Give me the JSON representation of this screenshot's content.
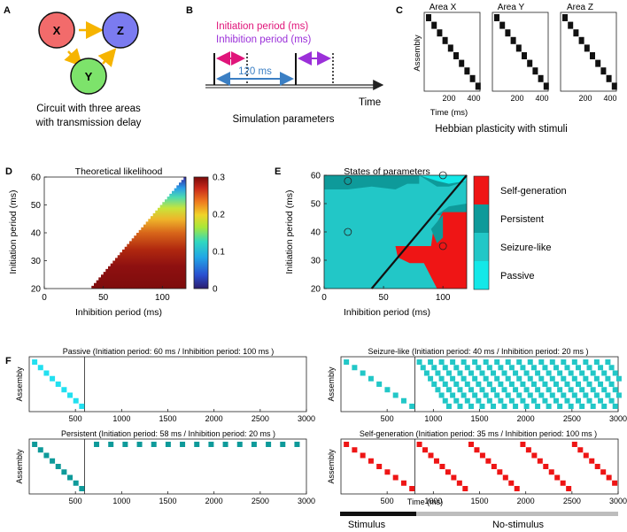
{
  "panel_letters": [
    "A",
    "B",
    "C",
    "D",
    "E",
    "F"
  ],
  "panel_a": {
    "nodes": [
      "X",
      "Z",
      "Y"
    ],
    "caption_line1": "Circuit with three areas",
    "caption_line2": "with transmission delay",
    "colors": {
      "X": "#f26b6b",
      "Z": "#7b7bf0",
      "Y": "#7de36b",
      "arrow": "#f6b400"
    }
  },
  "panel_b": {
    "initiation_label": "Initiation period (ms)",
    "inhibition_label": "Inhibition period (ms)",
    "span_label": "120 ms",
    "time_label": "Time",
    "caption": "Simulation parameters",
    "colors": {
      "initiation": "#e0157a",
      "inhibition": "#9b30d9",
      "span": "#3b7fc4"
    }
  },
  "panel_c": {
    "titles": [
      "Area X",
      "Area Y",
      "Area Z"
    ],
    "ylabel": "Assembly",
    "xlabel": "Time (ms)",
    "xticks": [
      "200",
      "400"
    ],
    "caption": "Hebbian plasticity with stimuli"
  },
  "chart_data": [
    {
      "type": "heatmap",
      "title": "Theoretical likelihood",
      "xlabel": "Inhibition period (ms)",
      "ylabel": "Initiation period (ms)",
      "xlim": [
        0,
        120
      ],
      "ylim": [
        20,
        60
      ],
      "xticks": [
        "0",
        "50",
        "100"
      ],
      "yticks": [
        "20",
        "30",
        "40",
        "50",
        "60"
      ],
      "colorbar_ticks": [
        "0",
        "0.1",
        "0.2",
        "0.3"
      ],
      "colorbar_range": [
        0,
        0.3
      ],
      "notes": "Defined only where inhibition period < 2 x (initiation period - 20); value highest near initiation 25-35 ms."
    },
    {
      "type": "heatmap",
      "title": "States of parameters",
      "xlabel": "Inhibition period (ms)",
      "ylabel": "Initiation period (ms)",
      "xlim": [
        0,
        120
      ],
      "ylim": [
        20,
        60
      ],
      "xticks": [
        "0",
        "50",
        "100"
      ],
      "yticks": [
        "20",
        "30",
        "40",
        "50",
        "60"
      ],
      "legend": [
        "Self-generation",
        "Persistent",
        "Seizure-like",
        "Passive"
      ],
      "legend_colors": [
        "#ef1515",
        "#0e9a9a",
        "#22c7c7",
        "#14e8e8"
      ],
      "markers": [
        {
          "x": 20,
          "y": 58
        },
        {
          "x": 100,
          "y": 60
        },
        {
          "x": 20,
          "y": 40
        },
        {
          "x": 100,
          "y": 35
        }
      ]
    }
  ],
  "panel_f": {
    "plots": [
      {
        "title": "Passive (Initiation period: 60 ms / Inhibition period: 100 ms )",
        "color": "#22e0f0",
        "kind": "passive"
      },
      {
        "title": "Seizure-like (Initiation period: 40 ms / Inhibition period: 20 ms )",
        "color": "#22c7c7",
        "kind": "seizure"
      },
      {
        "title": "Persistent (Initiation period: 58 ms / Inhibition period: 20 ms )",
        "color": "#0e9a9a",
        "kind": "persistent"
      },
      {
        "title": "Self-generation (Initiation period: 35 ms / Inhibition period: 100 ms )",
        "color": "#ee1515",
        "kind": "selfgen"
      }
    ],
    "ylabel": "Assembly",
    "xticks": [
      "500",
      "1000",
      "1500",
      "2000",
      "2500",
      "3000"
    ],
    "xlabel": "Time (ms)",
    "stimulus_label": "Stimulus",
    "nostimulus_label": "No-stimulus"
  }
}
